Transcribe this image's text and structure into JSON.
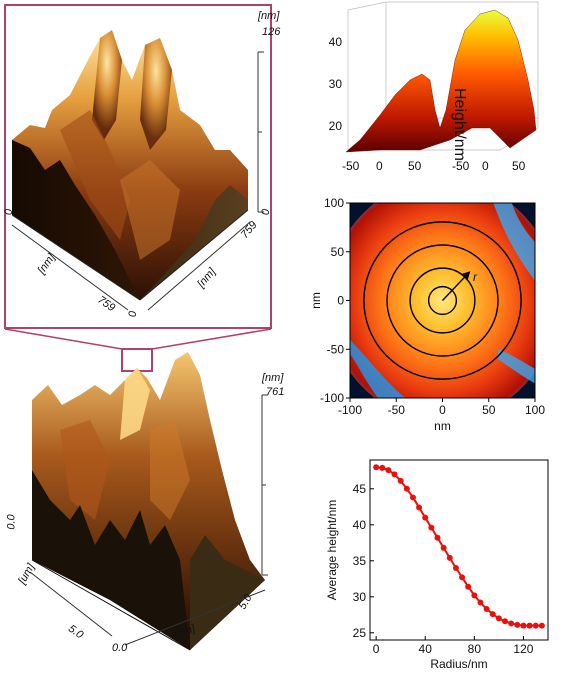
{
  "figure": {
    "afm_zoom": {
      "z_unit": "[nm]",
      "z_max": "126",
      "z_min": "0",
      "x_unit": "[nm]",
      "x_start": "0",
      "x_end": "759",
      "y_unit": "[nm]",
      "y_end": "759",
      "y_start": "0"
    },
    "afm_full": {
      "z_unit": "[nm]",
      "z_max": "761",
      "x_unit": "[um]",
      "x_start": "0.0",
      "x_end": "5.0",
      "y_unit": "[um]",
      "y_start": "0.0",
      "y_end": "5.0"
    },
    "colors": {
      "afm_dark": "#1a0c04",
      "afm_mid": "#8a3a10",
      "afm_bright": "#f2c060",
      "zoom_frame": "#b0406e",
      "curve_red": "#e8110c"
    }
  },
  "chart_data": [
    {
      "type": "surface3d",
      "title": "",
      "zlabel": "Height/nm",
      "z_ticks": [
        "20",
        "30",
        "40"
      ],
      "x_ticks": [
        "-50",
        "0",
        "50"
      ],
      "y_ticks": [
        "-50",
        "0",
        "50"
      ],
      "zlim": [
        15,
        48
      ],
      "colorscale": [
        "#5a0000",
        "#c01a00",
        "#ff6a00",
        "#ffd000",
        "#e8ff40"
      ]
    },
    {
      "type": "heatmap",
      "title": "",
      "xlabel": "nm",
      "ylabel": "nm",
      "xlim": [
        -100,
        100
      ],
      "ylim": [
        -100,
        100
      ],
      "x_ticks": [
        "-100",
        "-50",
        "0",
        "50",
        "100"
      ],
      "y_ticks": [
        "100",
        "50",
        "0",
        "-50",
        "-100"
      ],
      "circle_radii": [
        15,
        35,
        60,
        85
      ],
      "arrow_label": "r",
      "colorscale": [
        "#02122e",
        "#1c86d8",
        "#b01004",
        "#ff4a10",
        "#ffb020",
        "#ffe880"
      ]
    },
    {
      "type": "line",
      "title": "",
      "xlabel": "Radius/nm",
      "ylabel": "Average height/nm",
      "xlim": [
        -5,
        140
      ],
      "ylim": [
        24,
        49
      ],
      "x_ticks": [
        0,
        40,
        80,
        120
      ],
      "y_ticks": [
        25,
        30,
        35,
        40,
        45
      ],
      "x": [
        0,
        5,
        10,
        15,
        20,
        25,
        30,
        35,
        40,
        45,
        50,
        55,
        60,
        65,
        70,
        75,
        80,
        85,
        90,
        95,
        100,
        105,
        110,
        115,
        120,
        125,
        130,
        135
      ],
      "y": [
        48.0,
        47.9,
        47.6,
        47.0,
        46.1,
        45.0,
        43.8,
        42.4,
        41.0,
        39.6,
        38.2,
        36.8,
        35.4,
        34.0,
        32.7,
        31.4,
        30.2,
        29.2,
        28.3,
        27.6,
        27.0,
        26.6,
        26.3,
        26.1,
        26.0,
        26.0,
        26.0,
        26.0
      ]
    }
  ]
}
